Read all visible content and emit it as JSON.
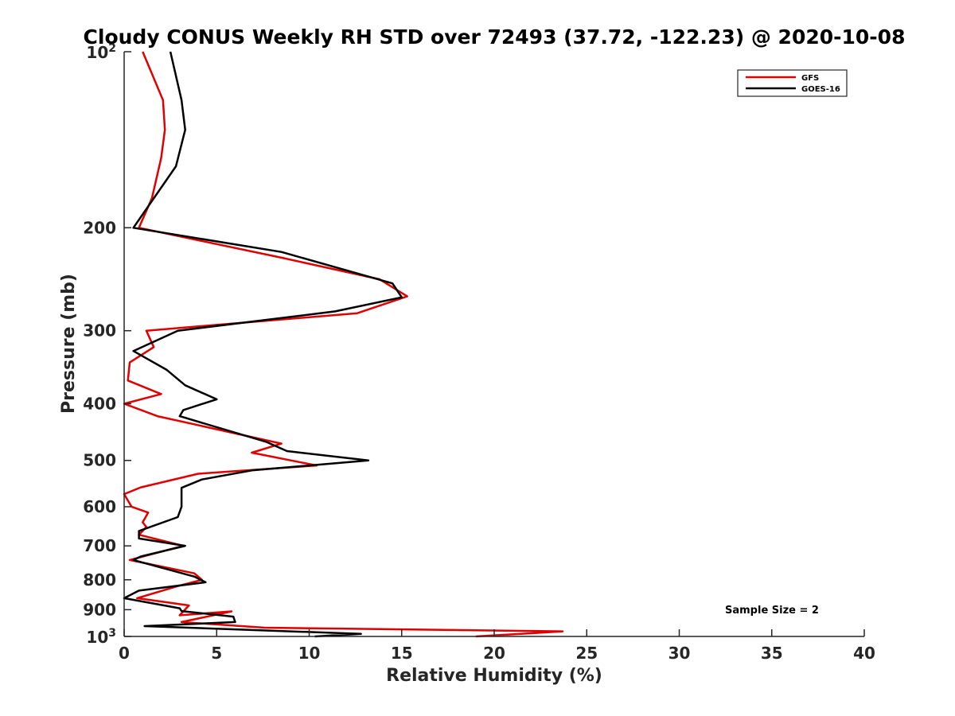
{
  "chart_data": {
    "type": "line",
    "title": "Cloudy CONUS Weekly RH STD over 72493 (37.72, -122.23) @ 2020-10-08",
    "xlabel": "Relative Humidity (%)",
    "ylabel": "Pressure (mb)",
    "xlim": [
      0,
      40
    ],
    "ylim": [
      100,
      1000
    ],
    "y_scale": "log",
    "y_reversed": true,
    "x_ticks": [
      "0",
      "5",
      "10",
      "15",
      "20",
      "25",
      "30",
      "35",
      "40"
    ],
    "y_ticks": [
      {
        "value": 100,
        "base": "10",
        "exp": "2"
      },
      {
        "value": 200,
        "label": "200"
      },
      {
        "value": 300,
        "label": "300"
      },
      {
        "value": 400,
        "label": "400"
      },
      {
        "value": 500,
        "label": "500"
      },
      {
        "value": 600,
        "label": "600"
      },
      {
        "value": 700,
        "label": "700"
      },
      {
        "value": 800,
        "label": "800"
      },
      {
        "value": 900,
        "label": "900"
      },
      {
        "value": 1000,
        "base": "10",
        "exp": "3"
      }
    ],
    "legend_position": "top-right",
    "grid": false,
    "annotation": "Sample Size = 2",
    "series": [
      {
        "name": "GFS",
        "color": "#e00000",
        "x": [
          1.0,
          2.1,
          2.2,
          2.0,
          1.5,
          0.8,
          8.5,
          13.8,
          15.3,
          12.6,
          1.2,
          1.6,
          0.3,
          0.2,
          2.0,
          0.0,
          1.8,
          8.5,
          6.9,
          10.4,
          4.0,
          0.9,
          0.0,
          0.4,
          1.3,
          1.0,
          1.2,
          0.8,
          3.2,
          0.3,
          3.8,
          4.2,
          2.9,
          0.7,
          3.5,
          3.0,
          5.8,
          3.1,
          7.6,
          23.7,
          19.0
        ],
        "y": [
          100,
          121,
          136,
          152,
          178,
          200,
          225,
          245,
          262,
          280,
          300,
          320,
          340,
          365,
          385,
          400,
          420,
          468,
          485,
          510,
          527,
          556,
          571,
          600,
          614,
          638,
          650,
          670,
          700,
          740,
          780,
          800,
          820,
          860,
          885,
          920,
          906,
          945,
          966,
          980,
          1000
        ]
      },
      {
        "name": "GOES-16",
        "color": "#000000",
        "x": [
          2.5,
          3.1,
          3.3,
          2.8,
          0.5,
          8.5,
          14.5,
          15.0,
          11.4,
          2.9,
          0.5,
          2.3,
          3.3,
          5.0,
          3.2,
          3.0,
          7.7,
          8.8,
          13.2,
          6.9,
          4.2,
          3.1,
          3.1,
          2.9,
          0.8,
          0.8,
          3.3,
          0.9,
          0.5,
          3.8,
          4.4,
          0.8,
          0.0,
          3.0,
          3.1,
          5.9,
          6.0,
          1.1,
          12.8,
          10.3
        ],
        "y": [
          100,
          121,
          136,
          157,
          200,
          220,
          249,
          263,
          278,
          300,
          325,
          350,
          372,
          393,
          410,
          420,
          465,
          482,
          500,
          520,
          539,
          557,
          600,
          625,
          660,
          680,
          700,
          730,
          740,
          790,
          808,
          835,
          860,
          895,
          905,
          925,
          945,
          960,
          990,
          1000
        ]
      }
    ]
  }
}
